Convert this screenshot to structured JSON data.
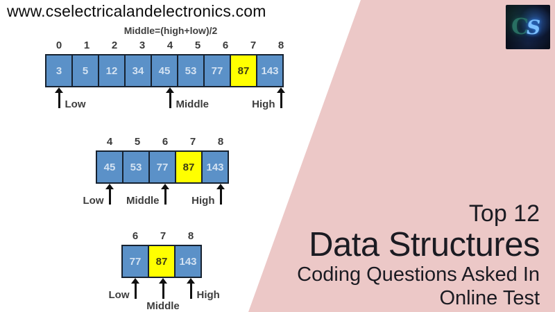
{
  "site": {
    "url": "www.cselectricalandelectronics.com"
  },
  "logo": {
    "letter_c": "C",
    "letter_s": "S"
  },
  "diagram": {
    "formula": "Middle=(high+low)/2",
    "steps": [
      {
        "indices": [
          0,
          1,
          2,
          3,
          4,
          5,
          6,
          7,
          8
        ],
        "values": [
          3,
          5,
          12,
          34,
          45,
          53,
          77,
          87,
          143
        ],
        "highlight_value": 87,
        "pointers": [
          {
            "label": "Low",
            "index": 0,
            "side": "right"
          },
          {
            "label": "Middle",
            "index": 4,
            "side": "right"
          },
          {
            "label": "High",
            "index": 8,
            "side": "left"
          }
        ]
      },
      {
        "indices": [
          4,
          5,
          6,
          7,
          8
        ],
        "values": [
          45,
          53,
          77,
          87,
          143
        ],
        "highlight_value": 87,
        "pointers": [
          {
            "label": "Low",
            "index": 4,
            "side": "left"
          },
          {
            "label": "Middle",
            "index": 6,
            "side": "left"
          },
          {
            "label": "High",
            "index": 8,
            "side": "left"
          }
        ]
      },
      {
        "indices": [
          6,
          7,
          8
        ],
        "values": [
          77,
          87,
          143
        ],
        "highlight_value": 87,
        "pointers": [
          {
            "label": "Low",
            "index": 6,
            "side": "left"
          },
          {
            "label": "Middle",
            "index": 7,
            "side": "below"
          },
          {
            "label": "High",
            "index": 8,
            "side": "right"
          }
        ]
      }
    ]
  },
  "banner": {
    "lines": [
      "Top 12",
      "Data Structures",
      "Coding Questions Asked In",
      "Online Test"
    ]
  },
  "colors": {
    "pink_background": "#ecc8c7",
    "cell_blue": "#5b91c8",
    "cell_highlight_yellow": "#ffff00",
    "cell_border": "#16212f",
    "banner_text": "#1b1b22"
  }
}
